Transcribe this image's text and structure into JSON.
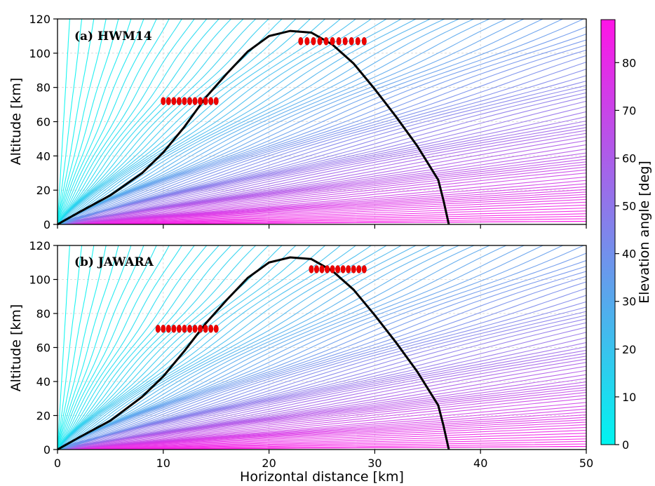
{
  "chart_data": {
    "type": "line",
    "xlabel": "Horizontal distance [km]",
    "ylabel": "Altitude [km]",
    "xlim": [
      0,
      50
    ],
    "ylim": [
      0,
      120
    ],
    "x_ticks": [
      "0",
      "10",
      "20",
      "30",
      "40",
      "50"
    ],
    "y_ticks": [
      "0",
      "20",
      "40",
      "60",
      "80",
      "100",
      "120"
    ],
    "grid": true,
    "colormap": {
      "low": "#00f5f0",
      "high": "#ff14e6"
    },
    "colorbar": {
      "label": "Elevation angle [deg]",
      "range": [
        0,
        89
      ],
      "ticks": [
        "0",
        "10",
        "20",
        "30",
        "40",
        "50",
        "60",
        "70",
        "80"
      ],
      "placement": "right"
    },
    "ray_paths": {
      "description_count": 90,
      "elevation_min_deg": 0,
      "elevation_max_deg": 89
    },
    "panels": [
      {
        "title": "(a) HWM14",
        "trajectory": {
          "x": [
            0,
            2,
            5,
            8,
            10,
            12,
            14,
            16,
            18,
            20,
            22,
            24,
            26,
            28,
            30,
            32,
            34,
            35,
            36,
            36.5,
            37
          ],
          "y": [
            0,
            7,
            17,
            30,
            42,
            57,
            74,
            88,
            101,
            110,
            113,
            112,
            105,
            94,
            79,
            63,
            46,
            36,
            26,
            14,
            0
          ]
        },
        "markers": [
          {
            "x": [
              10,
              10.5,
              11,
              11.5,
              12,
              12.5,
              13,
              13.5,
              14,
              14.5,
              15
            ],
            "y": [
              72,
              72,
              72,
              72,
              72,
              72,
              72,
              72,
              72,
              72,
              72
            ]
          },
          {
            "x": [
              23,
              23.6,
              24.2,
              24.8,
              25.4,
              26,
              26.6,
              27.2,
              27.8,
              28.4,
              29
            ],
            "y": [
              107,
              107,
              107,
              107,
              107,
              107,
              107,
              107,
              107,
              107,
              107
            ]
          }
        ]
      },
      {
        "title": "(b) JAWARA",
        "trajectory": {
          "x": [
            0,
            2,
            5,
            8,
            10,
            12,
            14,
            16,
            18,
            20,
            22,
            24,
            26,
            28,
            30,
            32,
            34,
            35,
            36,
            36.5,
            37
          ],
          "y": [
            0,
            7,
            17,
            31,
            43,
            58,
            74,
            88,
            101,
            110,
            113,
            112,
            105,
            94,
            79,
            63,
            46,
            36,
            26,
            14,
            0
          ]
        },
        "markers": [
          {
            "x": [
              9.5,
              10,
              10.5,
              11,
              11.5,
              12,
              12.5,
              13,
              13.5,
              14,
              14.5,
              15
            ],
            "y": [
              71,
              71,
              71,
              71,
              71,
              71,
              71,
              71,
              71,
              71,
              71,
              71
            ]
          },
          {
            "x": [
              24,
              24.5,
              25,
              25.5,
              26,
              26.5,
              27,
              27.5,
              28,
              28.5,
              29
            ],
            "y": [
              106,
              106,
              106,
              106,
              106,
              106,
              106,
              106,
              106,
              106,
              106
            ]
          }
        ]
      }
    ]
  }
}
